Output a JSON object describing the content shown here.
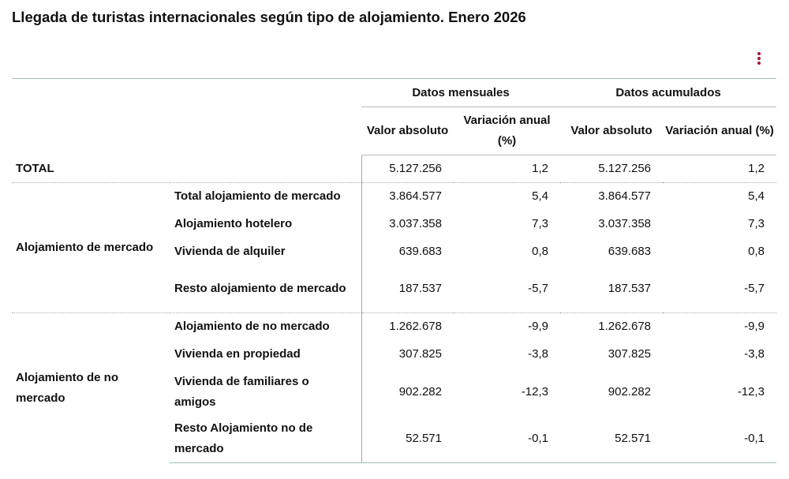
{
  "title": "Llegada de turistas internacionales según tipo de alojamiento. Enero 2026",
  "menu_icon": "vertical-ellipsis-icon",
  "accent_color": "#a3163b",
  "header": {
    "groups": [
      "Datos mensuales",
      "Datos acumulados"
    ],
    "columns": [
      "Valor absoluto",
      "Variación anual (%)",
      "Valor absoluto",
      "Variación anual (%)"
    ]
  },
  "rows": [
    {
      "group": "TOTAL",
      "label": "",
      "values": [
        "5.127.256",
        "1,2",
        "5.127.256",
        "1,2"
      ]
    },
    {
      "group": "Alojamiento de mercado",
      "label": "Total alojamiento de mercado",
      "values": [
        "3.864.577",
        "5,4",
        "3.864.577",
        "5,4"
      ]
    },
    {
      "group": "",
      "label": "Alojamiento hotelero",
      "values": [
        "3.037.358",
        "7,3",
        "3.037.358",
        "7,3"
      ]
    },
    {
      "group": "",
      "label": "Vivienda de alquiler",
      "values": [
        "639.683",
        "0,8",
        "639.683",
        "0,8"
      ]
    },
    {
      "group": "",
      "label": "Resto alojamiento de mercado",
      "values": [
        "187.537",
        "-5,7",
        "187.537",
        "-5,7"
      ]
    },
    {
      "group": "Alojamiento de no mercado",
      "label": "Alojamiento de no mercado",
      "values": [
        "1.262.678",
        "-9,9",
        "1.262.678",
        "-9,9"
      ]
    },
    {
      "group": "",
      "label": "Vivienda en propiedad",
      "values": [
        "307.825",
        "-3,8",
        "307.825",
        "-3,8"
      ]
    },
    {
      "group": "",
      "label": "Vivienda de familiares o amigos",
      "values": [
        "902.282",
        "-12,3",
        "902.282",
        "-12,3"
      ]
    },
    {
      "group": "",
      "label": "Resto Alojamiento no de mercado",
      "values": [
        "52.571",
        "-0,1",
        "52.571",
        "-0,1"
      ]
    }
  ]
}
